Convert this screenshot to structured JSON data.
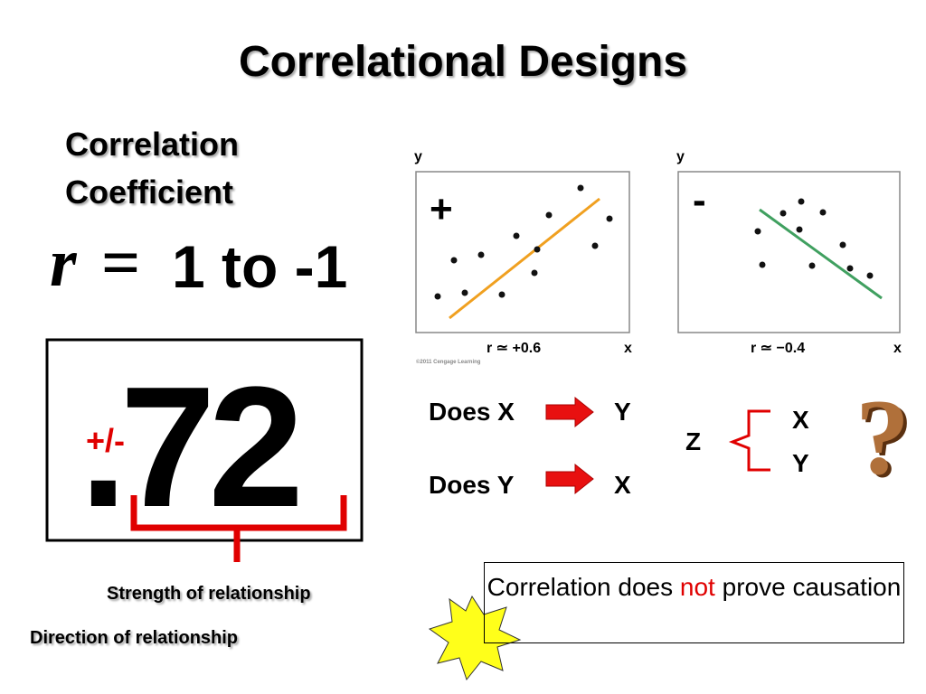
{
  "title": "Correlational Designs",
  "coefficient": {
    "lines": [
      "Correlation",
      "Coefficient"
    ],
    "symbol": "r",
    "equals": "=",
    "range": "1 to -1"
  },
  "example": {
    "value": ".72",
    "sign": "+/-"
  },
  "notes": {
    "strength": "Strength of relationship",
    "direction": "Direction of relationship"
  },
  "plots": [
    {
      "sign": "+",
      "y_label": "y",
      "x_label": "x",
      "caption": "r ≃ +0.6",
      "credit": "©2011 Cengage Learning"
    },
    {
      "sign": "-",
      "y_label": "y",
      "x_label": "x",
      "caption": "r ≃ −0.4"
    }
  ],
  "directions": [
    {
      "cause": "Does X",
      "effect": "Y"
    },
    {
      "cause": "Does Y",
      "effect": "X"
    }
  ],
  "third_variable": {
    "cause": "Z",
    "effects": [
      "X",
      "Y"
    ],
    "mark": "?"
  },
  "callout": {
    "before": "Correlation does",
    "emphasis": "not",
    "after": "prove causation"
  }
}
